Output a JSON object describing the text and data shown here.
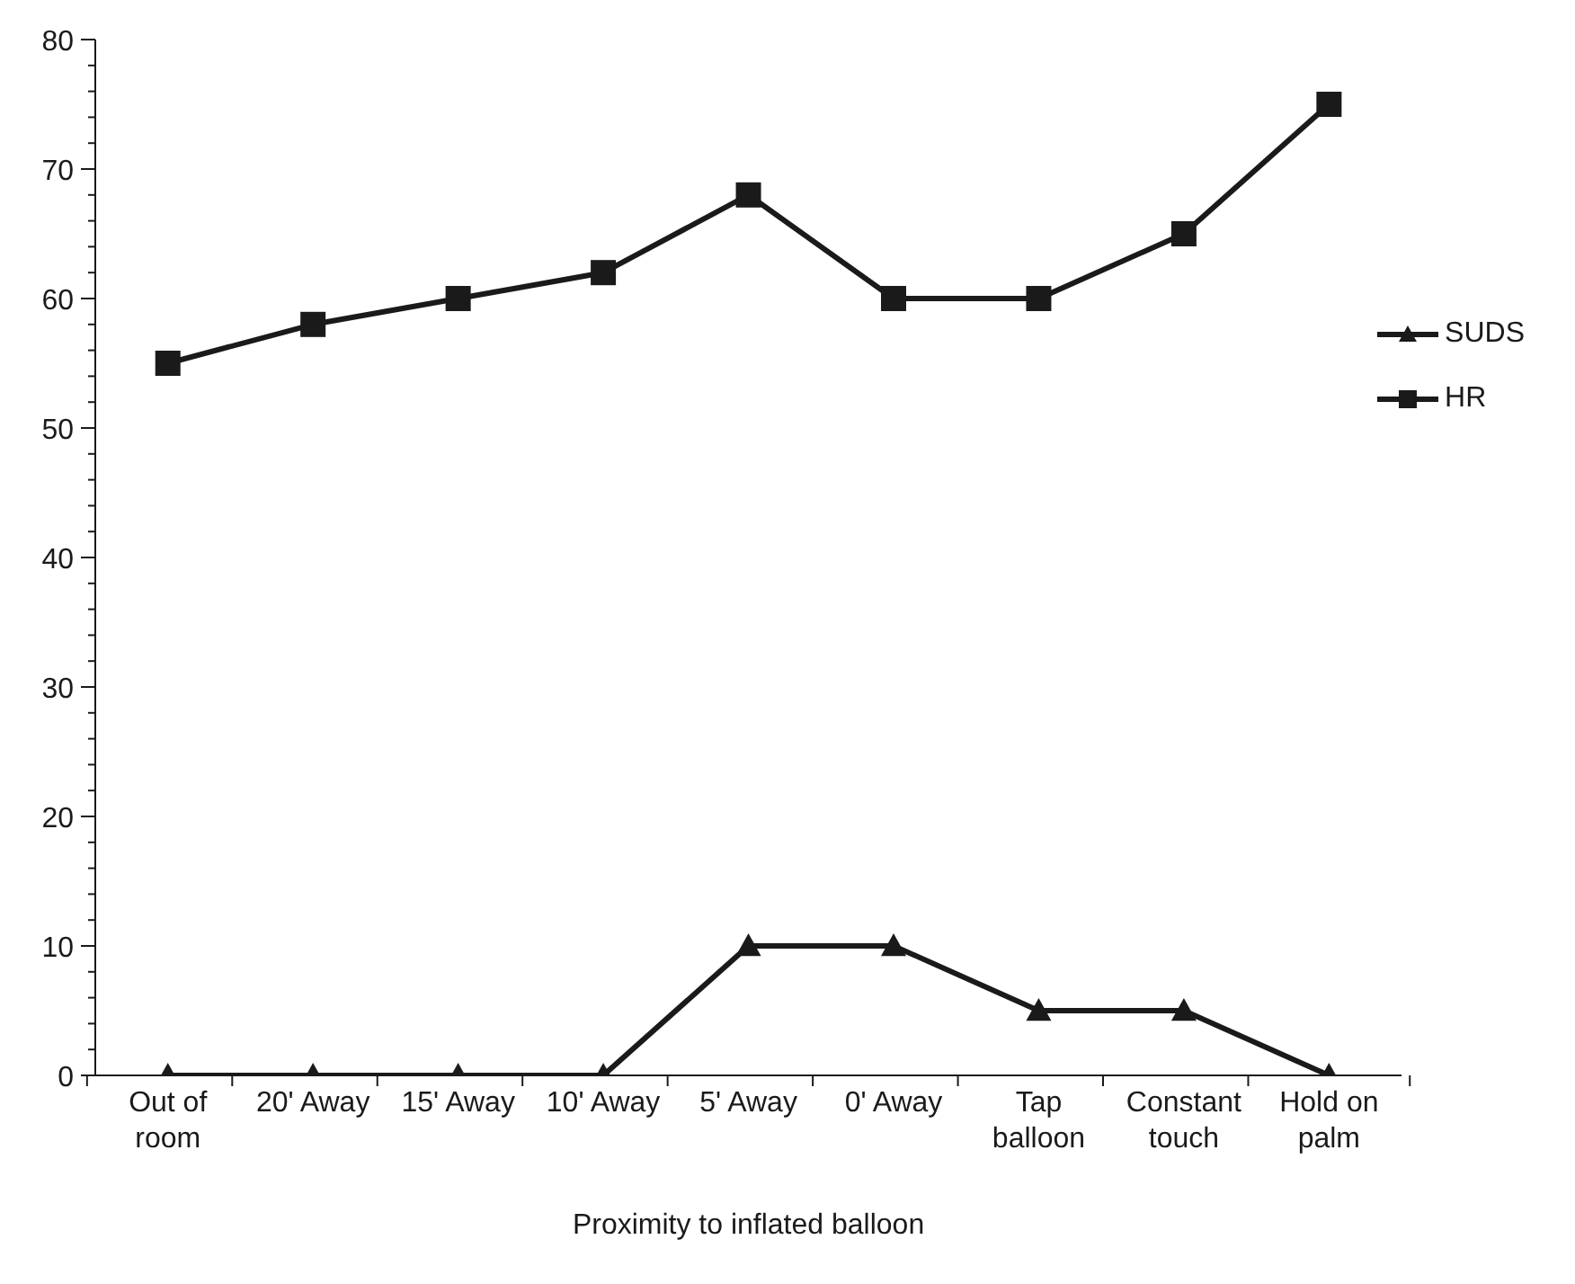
{
  "chart_data": {
    "type": "line",
    "xlabel": "Proximity to inflated balloon",
    "categories": [
      "Out of room",
      "20' Away",
      "15' Away",
      "10' Away",
      "5' Away",
      "0' Away",
      "Tap balloon",
      "Constant touch",
      "Hold on palm"
    ],
    "series": [
      {
        "name": "SUDS",
        "color": "#1a1a1a",
        "marker": "triangle",
        "values": [
          0,
          0,
          0,
          0,
          10,
          10,
          5,
          5,
          0
        ]
      },
      {
        "name": "HR",
        "color": "#1a1a1a",
        "marker": "square",
        "values": [
          55,
          58,
          60,
          62,
          68,
          60,
          60,
          65,
          75
        ]
      }
    ],
    "ylim": [
      0,
      80
    ],
    "yticks": [
      0,
      {
        "value": 2,
        "label": null
      },
      {
        "value": 4,
        "label": null
      },
      {
        "value": 6,
        "label": null
      },
      {
        "value": 8,
        "label": null
      },
      10,
      {
        "value": 12,
        "label": null
      },
      {
        "value": 14,
        "label": null
      },
      {
        "value": 16,
        "label": null
      },
      {
        "value": 18,
        "label": null
      },
      20,
      {
        "value": 22,
        "label": null
      },
      {
        "value": 24,
        "label": null
      },
      {
        "value": 26,
        "label": null
      },
      {
        "value": 28,
        "label": null
      },
      30,
      {
        "value": 32,
        "label": null
      },
      {
        "value": 34,
        "label": null
      },
      {
        "value": 36,
        "label": null
      },
      {
        "value": 38,
        "label": null
      },
      40,
      {
        "value": 42,
        "label": null
      },
      {
        "value": 44,
        "label": null
      },
      {
        "value": 46,
        "label": null
      },
      {
        "value": 48,
        "label": null
      },
      50,
      {
        "value": 52,
        "label": null
      },
      {
        "value": 54,
        "label": null
      },
      {
        "value": 56,
        "label": null
      },
      {
        "value": 58,
        "label": null
      },
      60,
      {
        "value": 62,
        "label": null
      },
      {
        "value": 64,
        "label": null
      },
      {
        "value": 66,
        "label": null
      },
      {
        "value": 68,
        "label": null
      },
      70,
      {
        "value": 72,
        "label": null
      },
      {
        "value": 74,
        "label": null
      },
      {
        "value": 76,
        "label": null
      },
      {
        "value": 78,
        "label": null
      },
      80
    ],
    "grid": false,
    "legend": "right",
    "line_style": "solid"
  }
}
